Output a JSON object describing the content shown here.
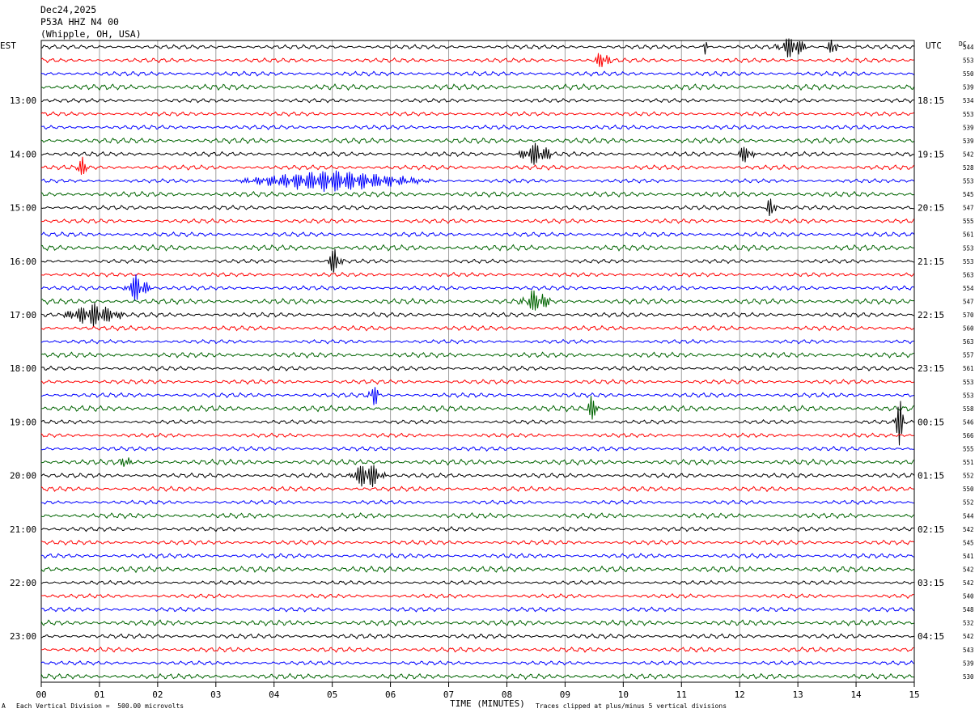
{
  "header": {
    "date": "Dec24,2025",
    "station": "P53A HHZ N4 00",
    "location": "(Whipple, OH, USA)"
  },
  "left_tz": "EST",
  "right_tz": "UTC",
  "dc_label": "DC",
  "footer": {
    "scale": "Each Vertical Division =  500.00 microvolts",
    "clip": "Traces clipped at plus/minus 5 vertical divisions",
    "corner": "A"
  },
  "colors": {
    "black": "#000000",
    "red": "#ff0000",
    "blue": "#0000ff",
    "green": "#006400",
    "grid": "#a0a0a0"
  },
  "chart_data": {
    "type": "line",
    "title": "",
    "xlabel": "TIME (MINUTES)",
    "xlim": [
      0,
      15
    ],
    "x_ticks": [
      "00",
      "01",
      "02",
      "03",
      "04",
      "05",
      "06",
      "07",
      "08",
      "09",
      "10",
      "11",
      "12",
      "13",
      "14",
      "15"
    ],
    "left_hour_labels": [
      "13:00",
      "14:00",
      "15:00",
      "16:00",
      "17:00",
      "18:00",
      "19:00",
      "20:00",
      "21:00",
      "22:00",
      "23:00"
    ],
    "right_hour_labels": [
      "18:15",
      "19:15",
      "20:15",
      "21:15",
      "22:15",
      "23:15",
      "00:15",
      "01:15",
      "02:15",
      "03:15",
      "04:15"
    ],
    "trace_colors": [
      "black",
      "red",
      "blue",
      "green"
    ],
    "dc_offsets": [
      544,
      553,
      550,
      539,
      534,
      553,
      539,
      539,
      542,
      528,
      553,
      545,
      547,
      555,
      561,
      553,
      553,
      563,
      554,
      547,
      570,
      560,
      563,
      557,
      561,
      553,
      553,
      558,
      546,
      566,
      555,
      551,
      552,
      550,
      552,
      544,
      542,
      545,
      541,
      542,
      542,
      540,
      548,
      532,
      542,
      543,
      539,
      530
    ],
    "events": [
      {
        "trace": 0,
        "minute": 11.4,
        "amp": 3,
        "dur": 0.05
      },
      {
        "trace": 0,
        "minute": 12.9,
        "amp": 2,
        "dur": 0.3
      },
      {
        "trace": 0,
        "minute": 13.6,
        "amp": 2.5,
        "dur": 0.1
      },
      {
        "trace": 1,
        "minute": 9.65,
        "amp": 2,
        "dur": 0.15
      },
      {
        "trace": 8,
        "minute": 8.5,
        "amp": 2,
        "dur": 0.35
      },
      {
        "trace": 8,
        "minute": 12.1,
        "amp": 1.5,
        "dur": 0.2
      },
      {
        "trace": 9,
        "minute": 0.7,
        "amp": 1.5,
        "dur": 0.15
      },
      {
        "trace": 10,
        "minute": 5.0,
        "amp": 1.8,
        "dur": 1.8
      },
      {
        "trace": 12,
        "minute": 12.55,
        "amp": 3,
        "dur": 0.1
      },
      {
        "trace": 16,
        "minute": 5.05,
        "amp": 2.5,
        "dur": 0.15
      },
      {
        "trace": 18,
        "minute": 1.65,
        "amp": 2.5,
        "dur": 0.25
      },
      {
        "trace": 19,
        "minute": 8.5,
        "amp": 2,
        "dur": 0.3
      },
      {
        "trace": 20,
        "minute": 0.9,
        "amp": 2,
        "dur": 0.6
      },
      {
        "trace": 26,
        "minute": 5.7,
        "amp": 3,
        "dur": 0.1
      },
      {
        "trace": 27,
        "minute": 9.45,
        "amp": 2,
        "dur": 0.15
      },
      {
        "trace": 28,
        "minute": 14.75,
        "amp": 4,
        "dur": 0.1
      },
      {
        "trace": 31,
        "minute": 1.45,
        "amp": 2,
        "dur": 0.1
      },
      {
        "trace": 32,
        "minute": 5.6,
        "amp": 2.5,
        "dur": 0.35
      }
    ]
  }
}
